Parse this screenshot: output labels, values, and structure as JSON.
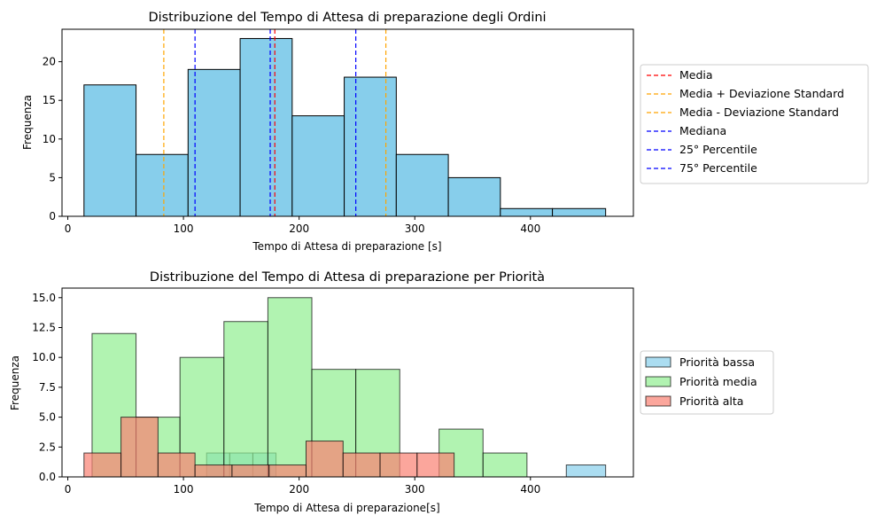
{
  "chart_data": [
    {
      "type": "histogram",
      "title": "Distribuzione del Tempo di Attesa di preparazione degli Ordini",
      "xlabel": "Tempo di Attesa di preparazione [s]",
      "ylabel": "Frequenza",
      "xlim": [
        -5,
        489
      ],
      "ylim": [
        0,
        24.2
      ],
      "xticks": [
        0,
        100,
        200,
        300,
        400
      ],
      "yticks": [
        0,
        5,
        10,
        15,
        20
      ],
      "bins": [
        {
          "x0": 14,
          "x1": 59,
          "count": 17
        },
        {
          "x0": 59,
          "x1": 104,
          "count": 8
        },
        {
          "x0": 104,
          "x1": 149,
          "count": 19
        },
        {
          "x0": 149,
          "x1": 194,
          "count": 23
        },
        {
          "x0": 194,
          "x1": 239,
          "count": 13
        },
        {
          "x0": 239,
          "x1": 284,
          "count": 18
        },
        {
          "x0": 284,
          "x1": 329,
          "count": 8
        },
        {
          "x0": 329,
          "x1": 374,
          "count": 5
        },
        {
          "x0": 374,
          "x1": 419,
          "count": 1
        },
        {
          "x0": 419,
          "x1": 465,
          "count": 1
        }
      ],
      "bar_color": "#87ceeb",
      "vlines": [
        {
          "label": "Media",
          "x": 179,
          "color": "#ff0000"
        },
        {
          "label": "Media + Deviazione Standard",
          "x": 275,
          "color": "#ffa500"
        },
        {
          "label": "Media - Deviazione Standard",
          "x": 83,
          "color": "#ffa500"
        },
        {
          "label": "Mediana",
          "x": 175,
          "color": "#0000ff"
        },
        {
          "label": "25° Percentile",
          "x": 110,
          "color": "#0000ff"
        },
        {
          "label": "75° Percentile",
          "x": 249,
          "color": "#0000ff"
        }
      ],
      "legend_position": "center-right-outside"
    },
    {
      "type": "histogram",
      "title": "Distribuzione del Tempo di Attesa di preparazione per Priorità",
      "xlabel": "Tempo di Attesa di preparazione[s]",
      "ylabel": "Frequenza",
      "xlim": [
        -5,
        489
      ],
      "ylim": [
        0,
        15.8
      ],
      "xticks": [
        0,
        100,
        200,
        300,
        400
      ],
      "yticks": [
        0.0,
        2.5,
        5.0,
        7.5,
        10.0,
        12.5,
        15.0
      ],
      "series": [
        {
          "name": "Priorità bassa",
          "color": "#87ceeb",
          "bins": [
            {
              "x0": 120,
              "x1": 140,
              "count": 2
            },
            {
              "x0": 140,
              "x1": 160,
              "count": 2
            },
            {
              "x0": 160,
              "x1": 180,
              "count": 2
            },
            {
              "x0": 431,
              "x1": 465,
              "count": 1
            }
          ]
        },
        {
          "name": "Priorità media",
          "color": "#90ee90",
          "bins": [
            {
              "x0": 21,
              "x1": 59,
              "count": 12
            },
            {
              "x0": 59,
              "x1": 97,
              "count": 5
            },
            {
              "x0": 97,
              "x1": 135,
              "count": 10
            },
            {
              "x0": 135,
              "x1": 173,
              "count": 13
            },
            {
              "x0": 173,
              "x1": 211,
              "count": 15
            },
            {
              "x0": 211,
              "x1": 249,
              "count": 9
            },
            {
              "x0": 249,
              "x1": 287,
              "count": 9
            },
            {
              "x0": 287,
              "x1": 321,
              "count": 0
            },
            {
              "x0": 321,
              "x1": 359,
              "count": 4
            },
            {
              "x0": 359,
              "x1": 397,
              "count": 2
            }
          ]
        },
        {
          "name": "Priorità alta",
          "color": "#fa8072",
          "bins": [
            {
              "x0": 14,
              "x1": 46,
              "count": 2
            },
            {
              "x0": 46,
              "x1": 78,
              "count": 5
            },
            {
              "x0": 78,
              "x1": 110,
              "count": 2
            },
            {
              "x0": 110,
              "x1": 142,
              "count": 1
            },
            {
              "x0": 142,
              "x1": 174,
              "count": 1
            },
            {
              "x0": 174,
              "x1": 206,
              "count": 1
            },
            {
              "x0": 206,
              "x1": 238,
              "count": 3
            },
            {
              "x0": 238,
              "x1": 270,
              "count": 2
            },
            {
              "x0": 270,
              "x1": 302,
              "count": 2
            },
            {
              "x0": 302,
              "x1": 334,
              "count": 2
            }
          ]
        }
      ],
      "legend_position": "center-right-outside"
    }
  ]
}
